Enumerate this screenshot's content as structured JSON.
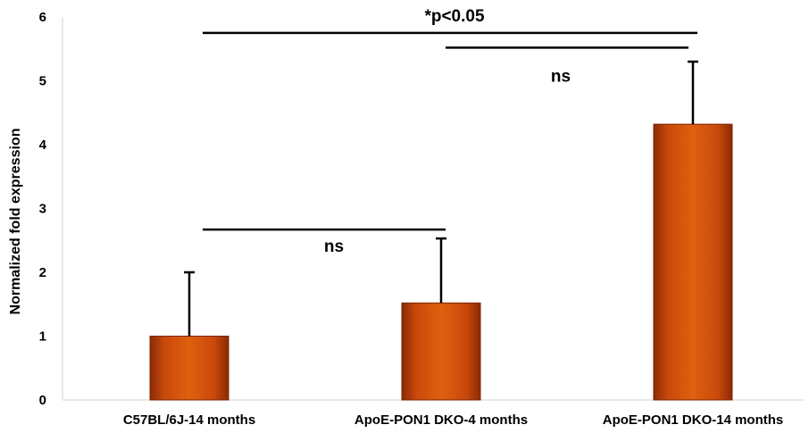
{
  "chart_data": {
    "type": "bar",
    "categories": [
      "C57BL/6J-14 months",
      "ApoE-PON1 DKO-4 months",
      "ApoE-PON1 DKO-14 months"
    ],
    "values": [
      1.0,
      1.52,
      4.32
    ],
    "error_upper": [
      2.0,
      2.53,
      5.3
    ],
    "ylabel": "Normalized fold expression",
    "ylim": [
      0,
      6
    ],
    "yticks": [
      "0",
      "1",
      "2",
      "3",
      "4",
      "5",
      "6"
    ],
    "grid": false,
    "bar_color": "#C8490A",
    "annotations": [
      {
        "text": "*p<0.05",
        "from_category": 0,
        "to_category": 2,
        "y": 5.75
      },
      {
        "text": "ns",
        "from_category": 1,
        "to_category": 2,
        "y": 5.52
      },
      {
        "text": "ns",
        "from_category": 0,
        "to_category": 1,
        "y": 2.67
      }
    ]
  }
}
